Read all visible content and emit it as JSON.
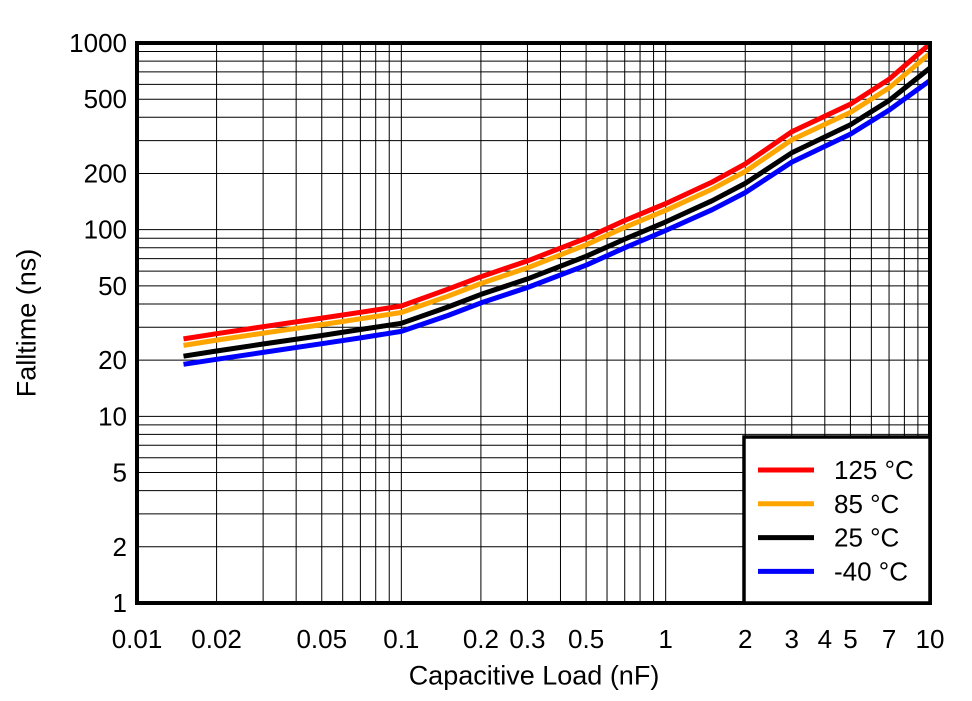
{
  "figure": {
    "background": "#ffffff",
    "frame_color": "#000000",
    "grid_color": "#000000"
  },
  "chart_data": {
    "type": "line",
    "title": "",
    "xlabel": "Capacitive Load (nF)",
    "ylabel": "Falltime (ns)",
    "x_scale": "log",
    "y_scale": "log",
    "xlim": [
      0.01,
      10
    ],
    "ylim": [
      1,
      1000
    ],
    "grid": "all log decades with minor lines, thin black on white",
    "legend_position": "bottom-right inside plot",
    "x_ticks": [
      {
        "value": 0.01,
        "label": "0.01"
      },
      {
        "value": 0.02,
        "label": "0.02"
      },
      {
        "value": 0.05,
        "label": "0.05"
      },
      {
        "value": 0.1,
        "label": "0.1"
      },
      {
        "value": 0.2,
        "label": "0.2"
      },
      {
        "value": 0.3,
        "label": "0.3"
      },
      {
        "value": 0.5,
        "label": "0.5"
      },
      {
        "value": 1,
        "label": "1"
      },
      {
        "value": 2,
        "label": "2"
      },
      {
        "value": 3,
        "label": "3"
      },
      {
        "value": 4,
        "label": "4"
      },
      {
        "value": 5,
        "label": "5"
      },
      {
        "value": 7,
        "label": "7"
      },
      {
        "value": 10,
        "label": "10"
      }
    ],
    "y_ticks": [
      {
        "value": 1000,
        "label": "1000"
      },
      {
        "value": 500,
        "label": "500"
      },
      {
        "value": 200,
        "label": "200"
      },
      {
        "value": 100,
        "label": "100"
      },
      {
        "value": 50,
        "label": "50"
      },
      {
        "value": 20,
        "label": "20"
      },
      {
        "value": 10,
        "label": "10"
      },
      {
        "value": 5,
        "label": "5"
      },
      {
        "value": 2,
        "label": "2"
      },
      {
        "value": 1,
        "label": "1"
      }
    ],
    "x": [
      0.015,
      0.02,
      0.03,
      0.05,
      0.07,
      0.1,
      0.15,
      0.2,
      0.3,
      0.5,
      0.7,
      1,
      1.5,
      2,
      3,
      5,
      7,
      10
    ],
    "series": [
      {
        "name": "125 °C",
        "color": "#ff0000",
        "values": [
          26,
          27.7,
          30.2,
          33.6,
          36.1,
          39,
          48,
          56,
          68,
          90,
          112,
          138,
          180,
          225,
          335,
          470,
          640,
          990
        ]
      },
      {
        "name": "85 °C",
        "color": "#ffa500",
        "values": [
          24,
          25.6,
          27.9,
          31.0,
          33.3,
          36,
          44,
          51.5,
          62.5,
          83,
          103,
          127,
          165,
          205,
          303,
          425,
          575,
          880
        ]
      },
      {
        "name": "25 °C",
        "color": "#000000",
        "values": [
          21,
          22.4,
          24.4,
          27.1,
          29.2,
          31.5,
          38.5,
          45,
          54.5,
          72,
          89,
          110,
          143,
          177,
          258,
          365,
          492,
          735
        ]
      },
      {
        "name": "-40 °C",
        "color": "#0000ff",
        "values": [
          19,
          20.2,
          22.0,
          24.5,
          26.3,
          28.5,
          34.7,
          40.5,
          49,
          64.5,
          80,
          99,
          128,
          158,
          230,
          325,
          437,
          630
        ]
      }
    ]
  }
}
